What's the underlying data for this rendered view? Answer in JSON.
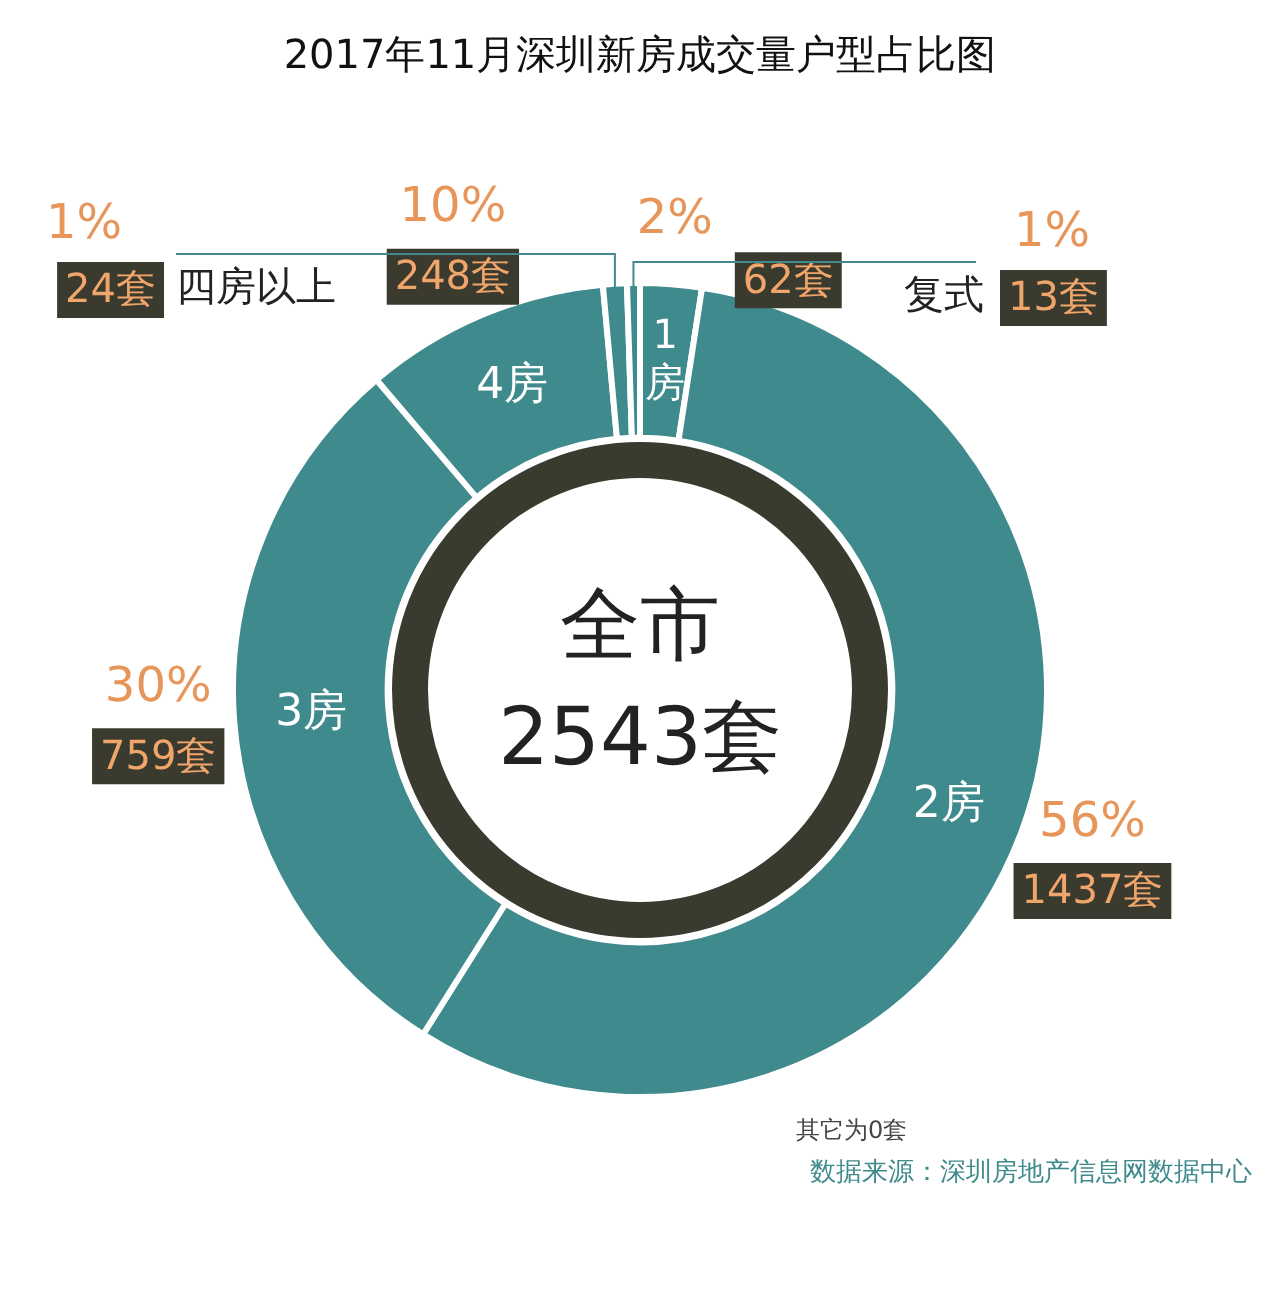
{
  "chart_data": {
    "type": "donut",
    "title": "2017年11月深圳新房成交量户型占比图",
    "categories": [
      "1房",
      "2房",
      "3房",
      "4房",
      "四房以上",
      "复式"
    ],
    "values": [
      62,
      1437,
      759,
      248,
      24,
      13
    ],
    "colors": [
      "#3f8a8c",
      "#3f8a8c",
      "#3f8a8c",
      "#3f8a8c",
      "#3f8a8c",
      "#3f8a8c"
    ],
    "value_labels": [
      "62套",
      "1437套",
      "759套",
      "248套",
      "24套",
      "13套"
    ],
    "annotations": [
      {
        "text": "2%",
        "x": "1房"
      },
      {
        "text": "56%",
        "x": "2房"
      },
      {
        "text": "30%",
        "x": "3房"
      },
      {
        "text": "10%",
        "x": "4房"
      },
      {
        "text": "1%",
        "x": "四房以上"
      },
      {
        "text": "1%",
        "x": "复式"
      },
      "全市",
      "2543套",
      "其它为0套",
      "数据来源：深圳房地产信息网数据中心"
    ],
    "legend": false
  }
}
